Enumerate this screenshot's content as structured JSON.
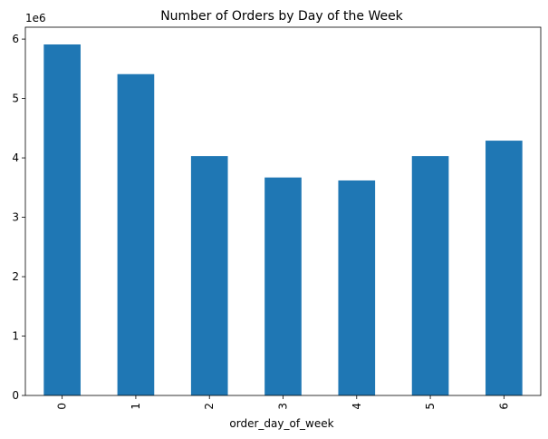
{
  "chart_data": {
    "type": "bar",
    "title": "Number of Orders by Day of the Week",
    "xlabel": "order_day_of_week",
    "ylabel": "",
    "y_multiplier_label": "1e6",
    "categories": [
      "0",
      "1",
      "2",
      "3",
      "4",
      "5",
      "6"
    ],
    "values": [
      5910000,
      5410000,
      4030000,
      3670000,
      3620000,
      4030000,
      4290000
    ],
    "ylim": [
      0,
      6200000
    ],
    "yticks": [
      0,
      1000000,
      2000000,
      3000000,
      4000000,
      5000000,
      6000000
    ],
    "ytick_labels": [
      "0",
      "1",
      "2",
      "3",
      "4",
      "5",
      "6"
    ],
    "grid": false,
    "legend": "none",
    "bar_color": "#1f77b4"
  }
}
